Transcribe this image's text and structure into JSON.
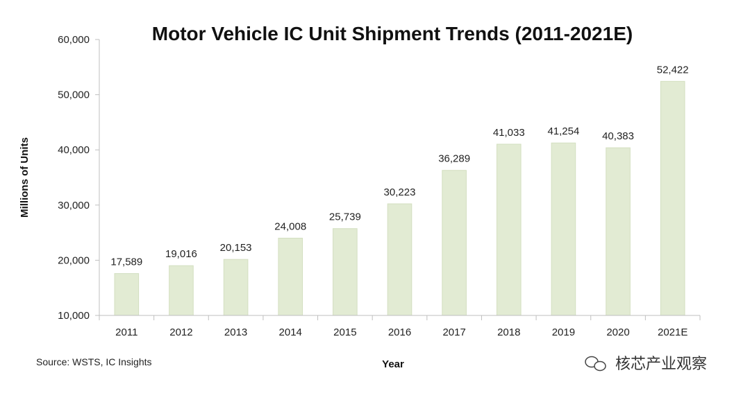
{
  "chart_data": {
    "type": "bar",
    "title": "Motor Vehicle IC Unit Shipment Trends (2011-2021E)",
    "xlabel": "Year",
    "ylabel": "Millions of Units",
    "categories": [
      "2011",
      "2012",
      "2013",
      "2014",
      "2015",
      "2016",
      "2017",
      "2018",
      "2019",
      "2020",
      "2021E"
    ],
    "values": [
      17589,
      19016,
      20153,
      24008,
      25739,
      30223,
      36289,
      41033,
      41254,
      40383,
      52422
    ],
    "value_labels": [
      "17,589",
      "19,016",
      "20,153",
      "24,008",
      "25,739",
      "30,223",
      "36,289",
      "41,033",
      "41,254",
      "40,383",
      "52,422"
    ],
    "ylim": [
      10000,
      60000
    ],
    "yticks": [
      10000,
      20000,
      30000,
      40000,
      50000,
      60000
    ],
    "ytick_labels": [
      "10,000",
      "20,000",
      "30,000",
      "40,000",
      "50,000",
      "60,000"
    ],
    "grid": false,
    "legend": "none",
    "bar_color": "#e2ebd3",
    "bar_edge_color": "#d3dfc0"
  },
  "footer": {
    "source": "Source: WSTS,  IC Insights",
    "watermark": "核芯产业观察"
  }
}
